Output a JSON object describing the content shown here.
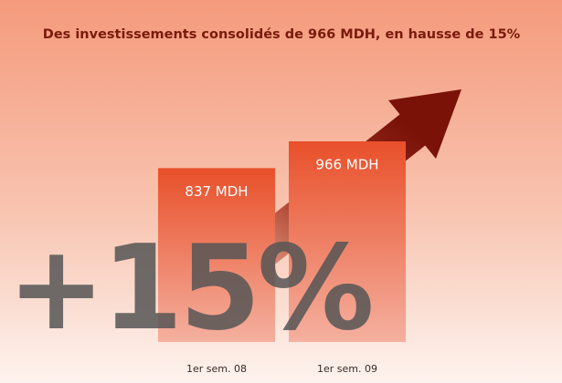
{
  "chart_data": {
    "type": "bar",
    "title": "Des investissements consolidés de 966 MDH, en hausse de 15%",
    "annotation": "+15%",
    "categories": [
      "1er sem. 08",
      "1er sem. 09"
    ],
    "values": [
      837,
      966
    ],
    "value_labels": [
      "837 MDH",
      "966 MDH"
    ],
    "color": "#e8502a"
  }
}
